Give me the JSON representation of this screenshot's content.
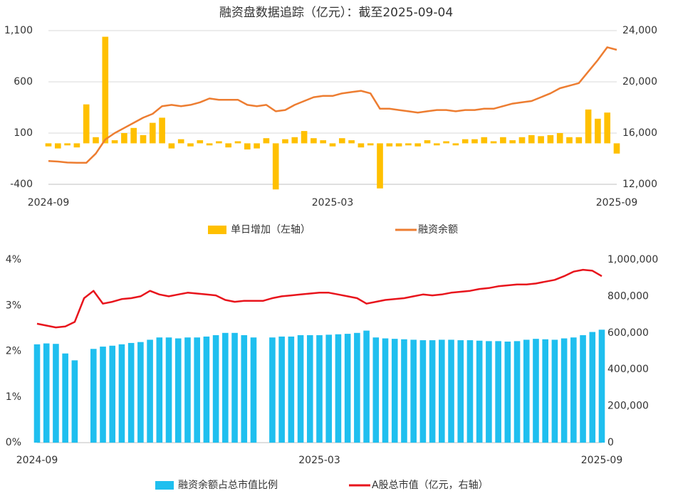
{
  "chart_data": [
    {
      "type": "combo",
      "title": "融资盘数据追踪（亿元）：截至2025-09-04",
      "categories": [
        "2024-09",
        null,
        null,
        null,
        null,
        null,
        null,
        null,
        null,
        null,
        null,
        null,
        null,
        null,
        null,
        null,
        null,
        null,
        null,
        null,
        null,
        null,
        null,
        null,
        null,
        null,
        null,
        null,
        null,
        null,
        "2025-03",
        null,
        null,
        null,
        null,
        null,
        null,
        null,
        null,
        null,
        null,
        null,
        null,
        null,
        null,
        null,
        null,
        null,
        null,
        null,
        null,
        null,
        null,
        null,
        null,
        null,
        null,
        null,
        null,
        null,
        "2025-09"
      ],
      "series": [
        {
          "name": "单日增加（左轴）",
          "type": "bar",
          "color": "#ffc000",
          "values": [
            -30,
            -50,
            -20,
            -40,
            380,
            60,
            1040,
            30,
            100,
            150,
            80,
            200,
            250,
            -50,
            40,
            -30,
            30,
            -20,
            20,
            -40,
            20,
            -60,
            -50,
            50,
            -450,
            40,
            60,
            120,
            50,
            30,
            -30,
            50,
            30,
            -40,
            -20,
            -440,
            -30,
            -30,
            -20,
            -30,
            30,
            -20,
            20,
            -20,
            40,
            40,
            60,
            20,
            60,
            30,
            60,
            80,
            70,
            80,
            100,
            60,
            60,
            330,
            240,
            300,
            -100
          ]
        },
        {
          "name": "融资余额",
          "type": "line",
          "axis": "y2",
          "color": "#ed7d31",
          "values": [
            13820,
            13780,
            13700,
            13680,
            13680,
            14400,
            15500,
            16000,
            16400,
            16800,
            17200,
            17500,
            18100,
            18200,
            18100,
            18200,
            18400,
            18700,
            18600,
            18600,
            18600,
            18200,
            18100,
            18200,
            17700,
            17800,
            18200,
            18500,
            18800,
            18900,
            18900,
            19100,
            19200,
            19300,
            19100,
            17900,
            17900,
            17800,
            17700,
            17600,
            17700,
            17800,
            17800,
            17700,
            17800,
            17800,
            17900,
            17900,
            18100,
            18300,
            18400,
            18500,
            18800,
            19100,
            19500,
            19700,
            19900,
            20800,
            21700,
            22700,
            22500
          ]
        }
      ],
      "ylim": [
        -400,
        1100
      ],
      "yticks": [
        -400,
        100,
        600,
        {
          "value": 1100,
          "label": "1,100"
        }
      ],
      "y2lim": [
        12000,
        24000
      ],
      "y2ticks": [
        {
          "value": 12000,
          "label": "12,000"
        },
        {
          "value": 16000,
          "label": "16,000"
        },
        {
          "value": 20000,
          "label": "20,000"
        },
        {
          "value": 24000,
          "label": "24,000"
        }
      ],
      "grid": true
    },
    {
      "type": "combo",
      "categories": [
        "2024-09",
        null,
        null,
        null,
        null,
        null,
        null,
        null,
        null,
        null,
        null,
        null,
        null,
        null,
        null,
        null,
        null,
        null,
        null,
        null,
        null,
        null,
        null,
        null,
        null,
        null,
        null,
        null,
        null,
        null,
        "2025-03",
        null,
        null,
        null,
        null,
        null,
        null,
        null,
        null,
        null,
        null,
        null,
        null,
        null,
        null,
        null,
        null,
        null,
        null,
        null,
        null,
        null,
        null,
        null,
        null,
        null,
        null,
        null,
        null,
        null,
        "2025-09"
      ],
      "series": [
        {
          "name": "融资余额占总市值比例",
          "type": "bar",
          "color": "#1fbfef",
          "values": [
            2.15,
            2.17,
            2.16,
            1.95,
            1.8,
            null,
            2.05,
            2.1,
            2.12,
            2.15,
            2.18,
            2.2,
            2.25,
            2.3,
            2.3,
            2.28,
            2.3,
            2.3,
            2.32,
            2.35,
            2.4,
            2.4,
            2.35,
            2.3,
            null,
            2.3,
            2.32,
            2.32,
            2.35,
            2.35,
            2.35,
            2.36,
            2.37,
            2.38,
            2.4,
            2.45,
            2.3,
            2.28,
            2.27,
            2.26,
            2.25,
            2.24,
            2.24,
            2.25,
            2.25,
            2.24,
            2.24,
            2.23,
            2.22,
            2.22,
            2.21,
            2.22,
            2.25,
            2.27,
            2.26,
            2.25,
            2.28,
            2.3,
            2.35,
            2.42,
            2.47
          ]
        },
        {
          "name": "A股总市值（亿元，右轴）",
          "type": "line",
          "axis": "y2",
          "color": "#e8141c",
          "values": [
            650000,
            640000,
            630000,
            635000,
            660000,
            790000,
            830000,
            760000,
            770000,
            785000,
            790000,
            800000,
            830000,
            810000,
            800000,
            810000,
            820000,
            815000,
            810000,
            805000,
            780000,
            770000,
            775000,
            775000,
            775000,
            790000,
            800000,
            805000,
            810000,
            815000,
            820000,
            820000,
            810000,
            800000,
            790000,
            760000,
            770000,
            780000,
            785000,
            790000,
            800000,
            810000,
            805000,
            810000,
            820000,
            825000,
            830000,
            840000,
            845000,
            855000,
            860000,
            865000,
            865000,
            870000,
            880000,
            890000,
            910000,
            935000,
            945000,
            940000,
            910000
          ]
        }
      ],
      "ylim": [
        0,
        4
      ],
      "yticks": [
        {
          "value": 0,
          "label": "0%"
        },
        {
          "value": 1,
          "label": "1%"
        },
        {
          "value": 2,
          "label": "2%"
        },
        {
          "value": 3,
          "label": "3%"
        },
        {
          "value": 4,
          "label": "4%"
        }
      ],
      "y2lim": [
        0,
        1000000
      ],
      "y2ticks": [
        0,
        {
          "value": 200000,
          "label": "200,000"
        },
        {
          "value": 400000,
          "label": "400,000"
        },
        {
          "value": 600000,
          "label": "600,000"
        },
        {
          "value": 800000,
          "label": "800,000"
        },
        {
          "value": 1000000,
          "label": "1,000,000"
        }
      ],
      "grid": false
    }
  ]
}
